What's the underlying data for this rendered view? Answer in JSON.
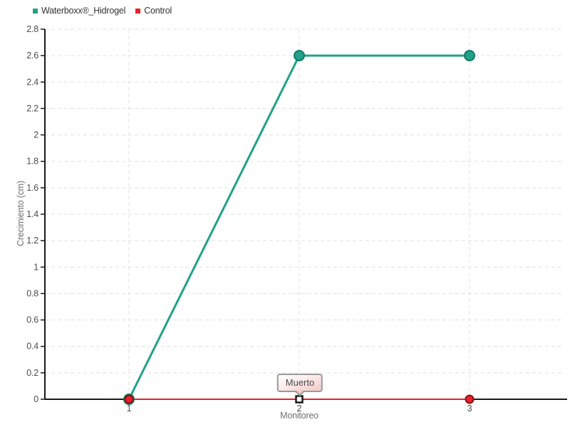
{
  "legend": {
    "position": "top-left",
    "items": [
      {
        "label": "Waterboxx®_Hidrogel",
        "color": "#22A189"
      },
      {
        "label": "Control",
        "color": "#E8212E"
      }
    ]
  },
  "tooltip": {
    "text": "Muerto"
  },
  "axes": {
    "x_title": "Monitoreo",
    "y_title": "Crecimiento (cm)"
  },
  "chart_data": {
    "type": "line",
    "title": "",
    "xlabel": "Monitoreo",
    "ylabel": "Crecimiento (cm)",
    "categories": [
      1,
      2,
      3
    ],
    "x_tick_labels": [
      "1",
      "2",
      "3"
    ],
    "ylim": [
      0,
      2.8
    ],
    "y_tick_step": 0.2,
    "y_tick_labels": [
      "0",
      "0.2",
      "0.4",
      "0.6",
      "0.8",
      "1",
      "1.2",
      "1.4",
      "1.6",
      "1.8",
      "2",
      "2.2",
      "2.4",
      "2.6",
      "2.8"
    ],
    "grid": "dashed",
    "legend_position": "top-left",
    "series": [
      {
        "name": "Waterboxx®_Hidrogel",
        "values": [
          0,
          2.6,
          2.6
        ],
        "color": "#22A189",
        "marker": "circle",
        "marker_stroke": "#107A64",
        "line_width": 3,
        "marker_radius": 7
      },
      {
        "name": "Control",
        "values": [
          0,
          0,
          0
        ],
        "color": "#E8212E",
        "marker": "circle",
        "marker_stroke": "#8F1016",
        "line_width": 2,
        "marker_radius": 5.5
      }
    ],
    "annotation": {
      "text": "Muerto",
      "series": "Control",
      "x": 2,
      "y": 0,
      "marker": "white-square"
    }
  },
  "style": {
    "grid_color": "#E0E0E0",
    "axis_color": "#1a1a1a",
    "tick_label_color": "#4d4d4d",
    "axis_title_color": "#707070",
    "tooltip_border": "#999999"
  }
}
